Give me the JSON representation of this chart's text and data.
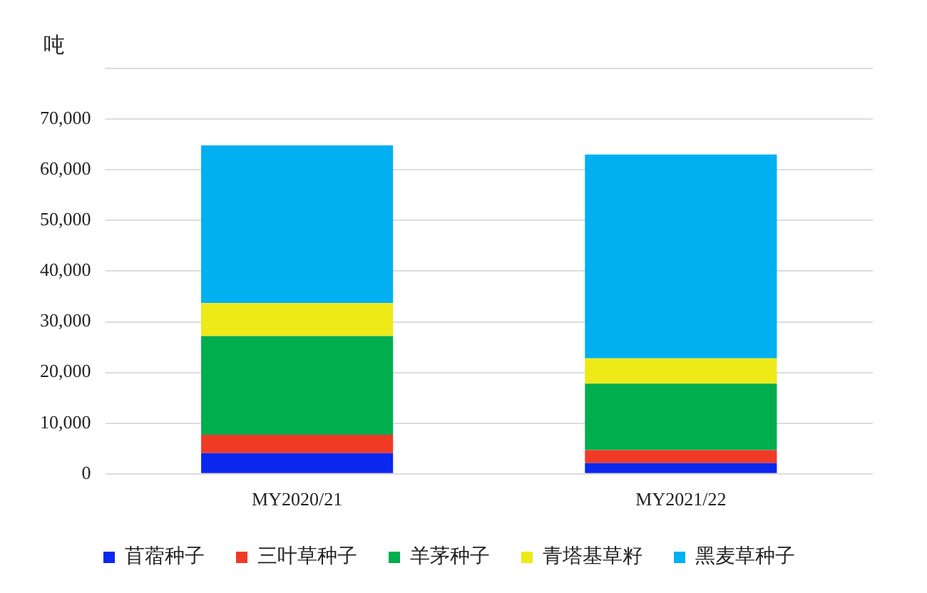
{
  "chart_data": {
    "type": "bar",
    "stacked": true,
    "ylabel": "吨",
    "categories": [
      "MY2020/21",
      "MY2021/22"
    ],
    "series": [
      {
        "name": "苜蓿种子",
        "color": "#0a28f0",
        "values": [
          4100,
          2100
        ]
      },
      {
        "name": "三叶草种子",
        "color": "#f03a26",
        "values": [
          3600,
          2600
        ]
      },
      {
        "name": "羊茅种子",
        "color": "#00ae4e",
        "values": [
          19500,
          13100
        ]
      },
      {
        "name": "青塔基草籽",
        "color": "#eeea18",
        "values": [
          6500,
          5000
        ]
      },
      {
        "name": "黑麦草种子",
        "color": "#00b0f0",
        "values": [
          31100,
          40200
        ]
      }
    ],
    "ylim": [
      0,
      80000
    ],
    "yticks": [
      0,
      {
        "value": 10000,
        "label": "10,000"
      },
      {
        "value": 20000,
        "label": "20,000"
      },
      {
        "value": 30000,
        "label": "30,000"
      },
      {
        "value": 40000,
        "label": "40,000"
      },
      {
        "value": 50000,
        "label": "50,000"
      },
      {
        "value": 60000,
        "label": "60,000"
      },
      {
        "value": 70000,
        "label": "70,000"
      },
      {
        "value": 80000,
        "label": null
      }
    ],
    "grid": "y",
    "legend": "bottom"
  }
}
